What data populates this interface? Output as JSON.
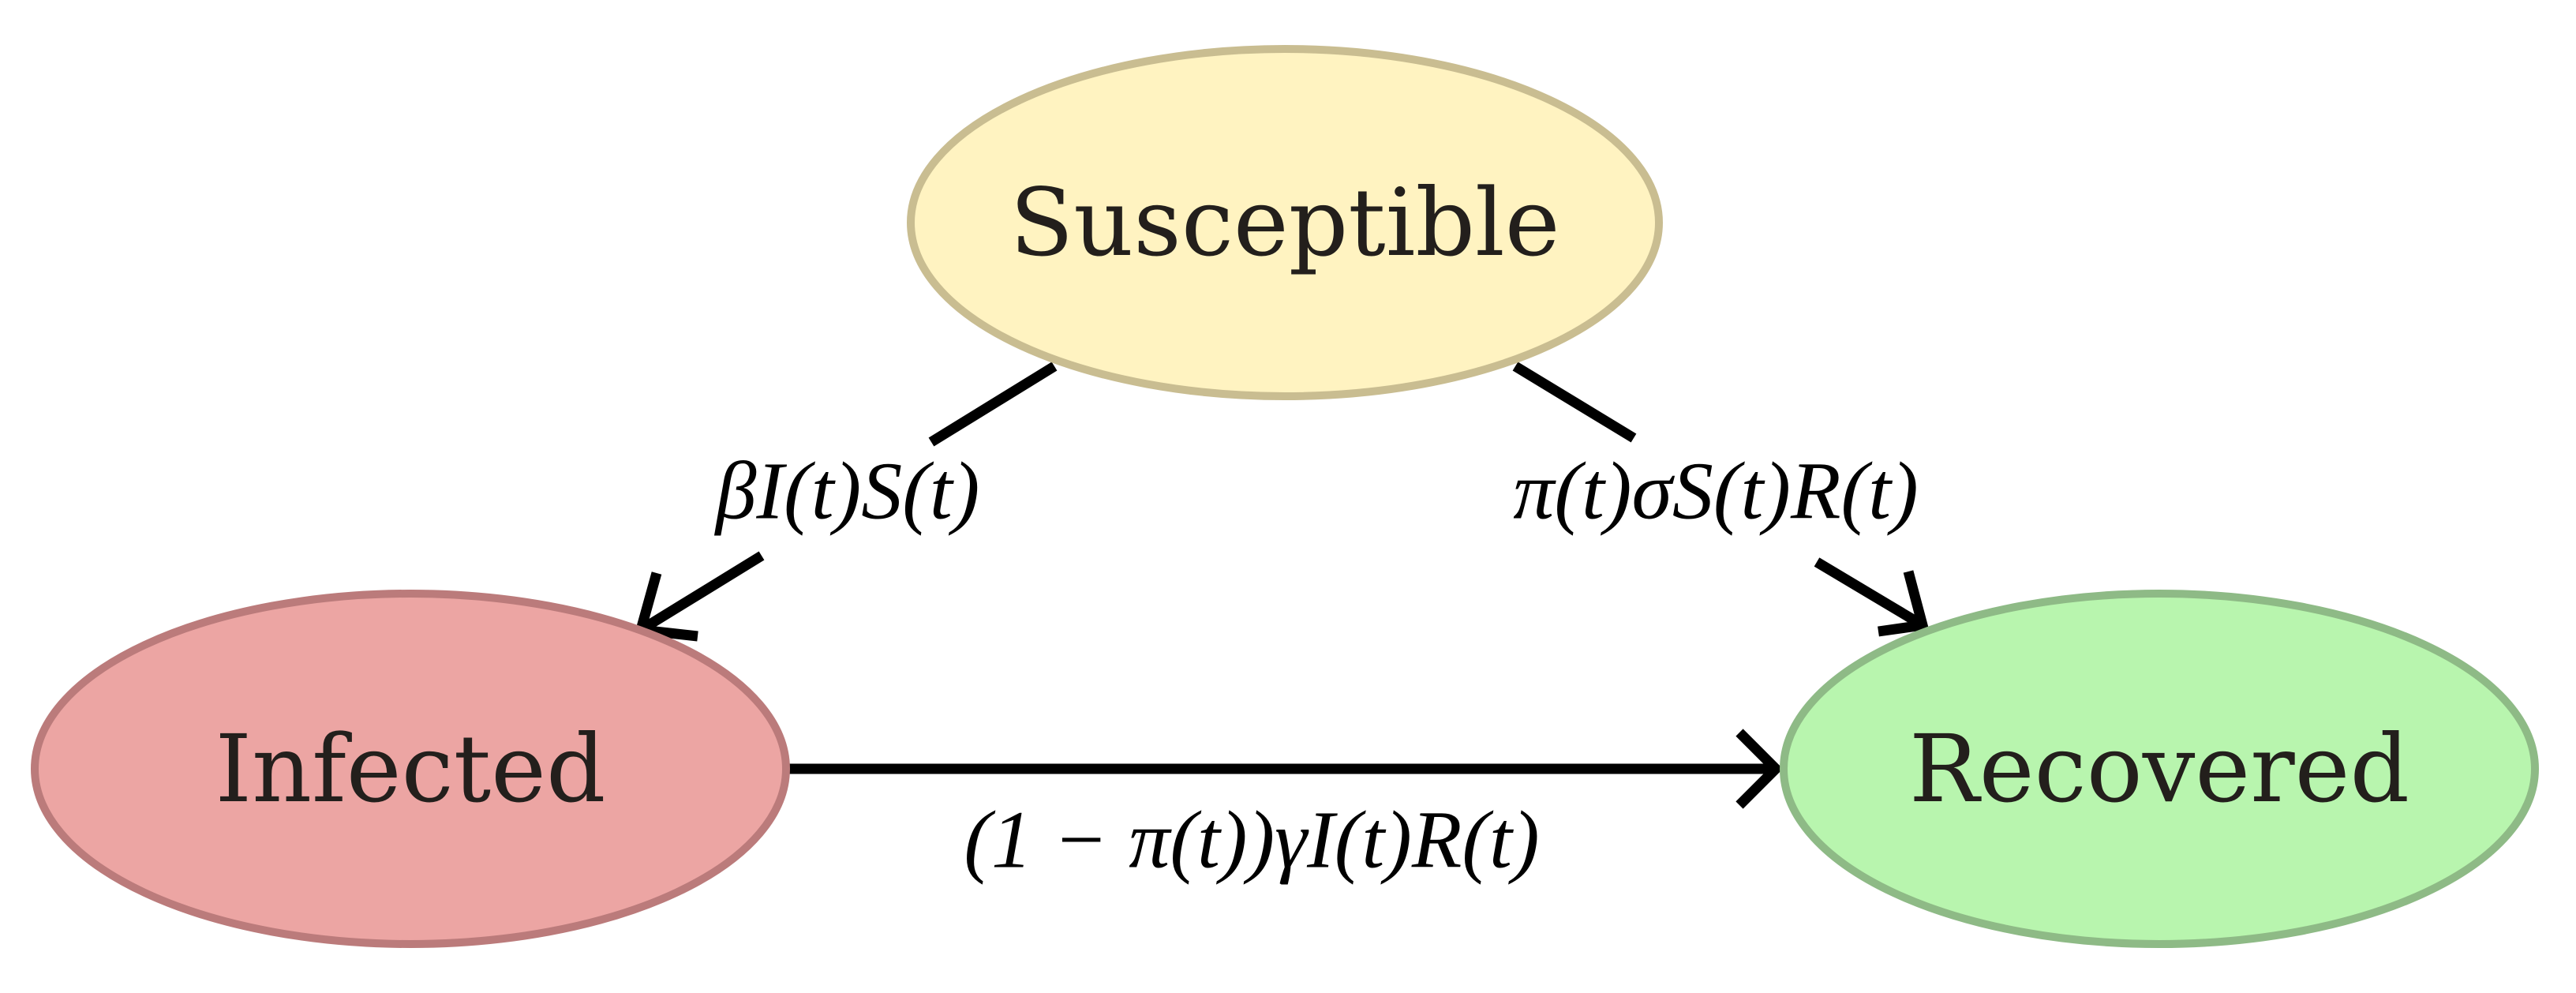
{
  "diagram": {
    "type": "compartmental-model",
    "nodes": [
      {
        "id": "susceptible",
        "label": "Susceptible",
        "fill": "#fff3c1",
        "stroke": "#c9bd91"
      },
      {
        "id": "infected",
        "label": "Infected",
        "fill": "#eca5a3",
        "stroke": "#bb7b7b"
      },
      {
        "id": "recovered",
        "label": "Recovered",
        "fill": "#b8f5ae",
        "stroke": "#8eba86"
      }
    ],
    "edges": [
      {
        "from": "susceptible",
        "to": "infected",
        "label": "βI(t)S(t)"
      },
      {
        "from": "susceptible",
        "to": "recovered",
        "label": "π(t)σS(t)R(t)"
      },
      {
        "from": "infected",
        "to": "recovered",
        "label": "(1 − π(t))γI(t)R(t)"
      }
    ]
  },
  "colors": {
    "edge": "#000000",
    "text": "#231f1c",
    "background": "#ffffff"
  }
}
